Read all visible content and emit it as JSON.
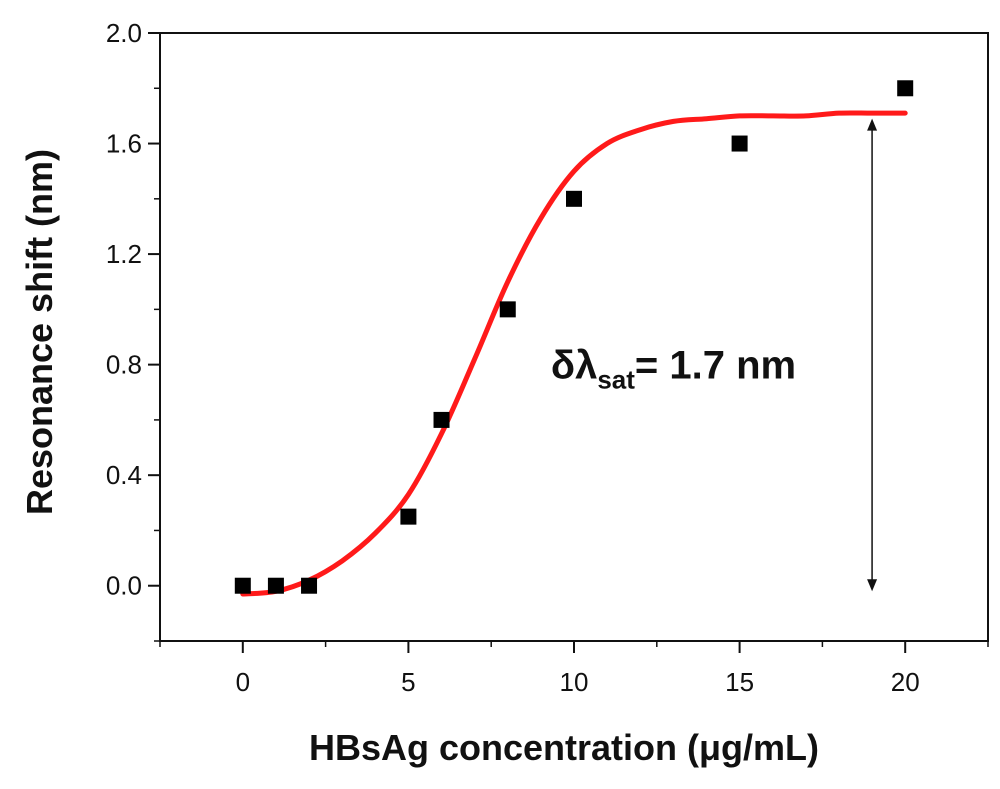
{
  "chart_data": {
    "type": "scatter",
    "title": "",
    "xlabel": "HBsAg concentration (μg/mL)",
    "ylabel": "Resonance  shift (nm)",
    "xlim": [
      -2.5,
      22.5
    ],
    "ylim": [
      -0.2,
      2.0
    ],
    "x_ticks": [
      0,
      5,
      10,
      15,
      20
    ],
    "x_tick_labels": [
      "0",
      "5",
      "10",
      "15",
      "20"
    ],
    "y_ticks": [
      0.0,
      0.4,
      0.8,
      1.2,
      1.6,
      2.0
    ],
    "y_tick_labels": [
      "0.0",
      "0.4",
      "0.8",
      "1.2",
      "1.6",
      "2.0"
    ],
    "grid": false,
    "series": [
      {
        "type": "scatter",
        "marker": "square",
        "color": "#000000",
        "x": [
          0,
          1,
          2,
          5,
          6,
          8,
          10,
          15,
          20
        ],
        "y": [
          0.0,
          0.0,
          0.0,
          0.25,
          0.6,
          1.0,
          1.4,
          1.6,
          1.8
        ]
      },
      {
        "type": "line",
        "color": "#ff1a1a",
        "fit_x": [
          0,
          1,
          2,
          3,
          4,
          5,
          6,
          7,
          8,
          9,
          10,
          11,
          12,
          13,
          14,
          15,
          16,
          17,
          18,
          19,
          20
        ],
        "fit_y": [
          -0.03,
          -0.02,
          0.02,
          0.09,
          0.19,
          0.33,
          0.55,
          0.82,
          1.1,
          1.33,
          1.5,
          1.6,
          1.65,
          1.68,
          1.69,
          1.7,
          1.7,
          1.7,
          1.71,
          1.71,
          1.71
        ]
      }
    ],
    "annotations": [
      {
        "prefix": "δλ",
        "subscript": "sat",
        "suffix": "= 1.7 nm",
        "x": 9.3,
        "y": 0.8
      },
      {
        "type": "double-arrow",
        "x": 19.0,
        "y_from": 1.69,
        "y_to": -0.02
      }
    ]
  }
}
